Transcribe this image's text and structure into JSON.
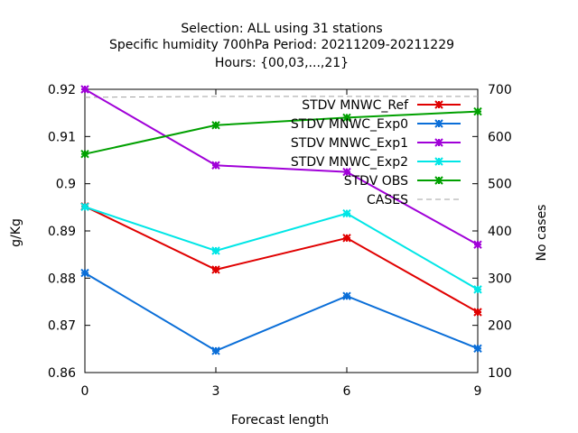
{
  "chart_data": {
    "type": "line",
    "title_lines": [
      "Selection: ALL using    31 stations",
      "Specific humidity 700hPa   Period: 20211209-20211229",
      "Hours: {00,03,...,21}"
    ],
    "xlabel": "Forecast length",
    "ylabel": "g/Kg",
    "y2label": "No cases",
    "x": [
      0,
      3,
      6,
      9
    ],
    "xlim": [
      0,
      9
    ],
    "x_ticks": [
      "0",
      "3",
      "6",
      "9"
    ],
    "ylim": [
      0.86,
      0.92
    ],
    "y_ticks": [
      "0.86",
      "0.87",
      "0.88",
      "0.89",
      "0.9",
      "0.91",
      "0.92"
    ],
    "y2lim": [
      100,
      700
    ],
    "y2_ticks": [
      "100",
      "200",
      "300",
      "400",
      "500",
      "600",
      "700"
    ],
    "grid": false,
    "legend_position": "top-right",
    "series": [
      {
        "name": "STDV MNWC_Ref",
        "axis": "y",
        "color": "#e00000",
        "marker": "x-star",
        "values": [
          0.8952,
          0.8818,
          0.8885,
          0.8728
        ]
      },
      {
        "name": "STDV MNWC_Exp0",
        "axis": "y",
        "color": "#0a6ed8",
        "marker": "x-star",
        "values": [
          0.8811,
          0.8646,
          0.8762,
          0.8651
        ]
      },
      {
        "name": "STDV MNWC_Exp1",
        "axis": "y",
        "color": "#a000d8",
        "marker": "x-star",
        "values": [
          0.92,
          0.9039,
          0.9025,
          0.8871
        ]
      },
      {
        "name": "STDV MNWC_Exp2",
        "axis": "y",
        "color": "#00e6e6",
        "marker": "x-star",
        "values": [
          0.8951,
          0.8858,
          0.8937,
          0.8776
        ]
      },
      {
        "name": "STDV OBS",
        "axis": "y",
        "color": "#00a000",
        "marker": "x-star",
        "values": [
          0.9063,
          0.9124,
          0.914,
          0.9153
        ]
      },
      {
        "name": "CASES",
        "axis": "y2",
        "color": "#a0a0a0",
        "marker": "none",
        "dashed": true,
        "values": [
          683,
          685,
          685,
          685
        ]
      }
    ]
  }
}
